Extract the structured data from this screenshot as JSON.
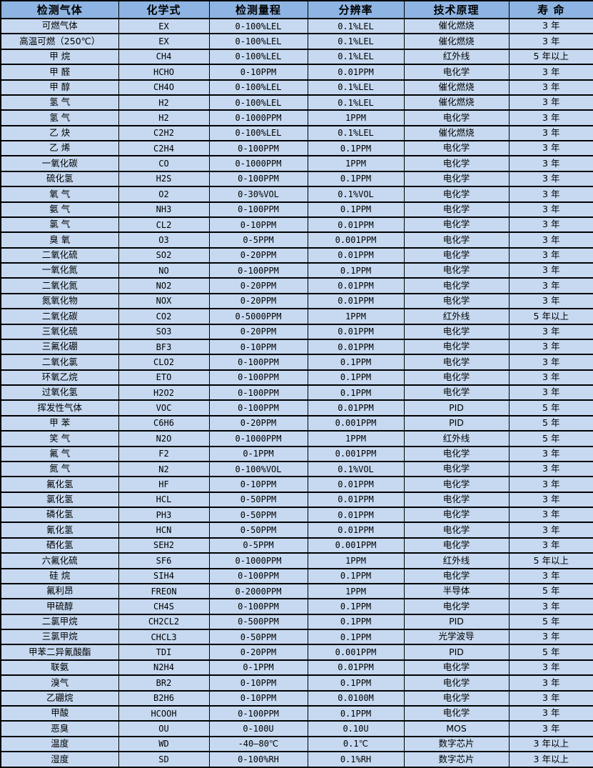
{
  "table": {
    "headers": [
      "检测气体",
      "化学式",
      "检测量程",
      "分辨率",
      "技术原理",
      "寿 命"
    ],
    "colors": {
      "header_bg": "#8db4e2",
      "body_bg": "#c6d9f1",
      "border": "#000000",
      "text": "#000000"
    },
    "rows": [
      {
        "gas": "可燃气体",
        "formula": "EX",
        "range": "0-100%LEL",
        "resolution": "0.1%LEL",
        "principle": "催化燃烧",
        "life": "3 年"
      },
      {
        "gas": "高温可燃（250℃）",
        "formula": "EX",
        "range": "0-100%LEL",
        "resolution": "0.1%LEL",
        "principle": "催化燃烧",
        "life": "3 年"
      },
      {
        "gas": "甲 烷",
        "formula": "CH4",
        "range": "0-100%LEL",
        "resolution": "0.1%LEL",
        "principle": "红外线",
        "life": "5 年以上"
      },
      {
        "gas": "甲 醛",
        "formula": "HCHO",
        "range": "0-10PPM",
        "resolution": "0.01PPM",
        "principle": "电化学",
        "life": "3 年"
      },
      {
        "gas": "甲 醇",
        "formula": "CH4O",
        "range": "0-100%LEL",
        "resolution": "0.1%LEL",
        "principle": "催化燃烧",
        "life": "3 年"
      },
      {
        "gas": "氢 气",
        "formula": "H2",
        "range": "0-100%LEL",
        "resolution": "0.1%LEL",
        "principle": "催化燃烧",
        "life": "3 年"
      },
      {
        "gas": "氢 气",
        "formula": "H2",
        "range": "0-1000PPM",
        "resolution": "1PPM",
        "principle": "电化学",
        "life": "3 年"
      },
      {
        "gas": "乙 炔",
        "formula": "C2H2",
        "range": "0-100%LEL",
        "resolution": "0.1%LEL",
        "principle": "催化燃烧",
        "life": "3 年"
      },
      {
        "gas": "乙 烯",
        "formula": "C2H4",
        "range": "0-100PPM",
        "resolution": "0.1PPM",
        "principle": "电化学",
        "life": "3 年"
      },
      {
        "gas": "一氧化碳",
        "formula": "CO",
        "range": "0-1000PPM",
        "resolution": "1PPM",
        "principle": "电化学",
        "life": "3 年"
      },
      {
        "gas": "硫化氢",
        "formula": "H2S",
        "range": "0-100PPM",
        "resolution": "0.1PPM",
        "principle": "电化学",
        "life": "3 年"
      },
      {
        "gas": "氧 气",
        "formula": "O2",
        "range": "0-30%VOL",
        "resolution": "0.1%VOL",
        "principle": "电化学",
        "life": "3 年"
      },
      {
        "gas": "氨 气",
        "formula": "NH3",
        "range": "0-100PPM",
        "resolution": "0.1PPM",
        "principle": "电化学",
        "life": "3 年"
      },
      {
        "gas": "氯 气",
        "formula": "CL2",
        "range": "0-10PPM",
        "resolution": "0.01PPM",
        "principle": "电化学",
        "life": "3 年"
      },
      {
        "gas": "臭 氧",
        "formula": "O3",
        "range": "0-5PPM",
        "resolution": "0.001PPM",
        "principle": "电化学",
        "life": "3 年"
      },
      {
        "gas": "二氧化硫",
        "formula": "SO2",
        "range": "0-20PPM",
        "resolution": "0.01PPM",
        "principle": "电化学",
        "life": "3 年"
      },
      {
        "gas": "一氧化氮",
        "formula": "NO",
        "range": "0-100PPM",
        "resolution": "0.1PPM",
        "principle": "电化学",
        "life": "3 年"
      },
      {
        "gas": "二氧化氮",
        "formula": "NO2",
        "range": "0-20PPM",
        "resolution": "0.01PPM",
        "principle": "电化学",
        "life": "3 年"
      },
      {
        "gas": "氮氧化物",
        "formula": "NOX",
        "range": "0-20PPM",
        "resolution": "0.01PPM",
        "principle": "电化学",
        "life": "3 年"
      },
      {
        "gas": "二氧化碳",
        "formula": "CO2",
        "range": "0-5000PPM",
        "resolution": "1PPM",
        "principle": "红外线",
        "life": "5 年以上"
      },
      {
        "gas": "三氧化硫",
        "formula": "SO3",
        "range": "0-20PPM",
        "resolution": "0.01PPM",
        "principle": "电化学",
        "life": "3 年"
      },
      {
        "gas": "三氟化硼",
        "formula": "BF3",
        "range": "0-10PPM",
        "resolution": "0.01PPM",
        "principle": "电化学",
        "life": "3 年"
      },
      {
        "gas": "二氧化氯",
        "formula": "CLO2",
        "range": "0-100PPM",
        "resolution": "0.1PPM",
        "principle": "电化学",
        "life": "3 年"
      },
      {
        "gas": "环氧乙烷",
        "formula": "ETO",
        "range": "0-100PPM",
        "resolution": "0.1PPM",
        "principle": "电化学",
        "life": "3 年"
      },
      {
        "gas": "过氧化氢",
        "formula": "H2O2",
        "range": "0-100PPM",
        "resolution": "0.1PPM",
        "principle": "电化学",
        "life": "3 年"
      },
      {
        "gas": "挥发性气体",
        "formula": "VOC",
        "range": "0-100PPM",
        "resolution": "0.01PPM",
        "principle": "PID",
        "life": "5 年"
      },
      {
        "gas": "甲 苯",
        "formula": "C6H6",
        "range": "0-20PPM",
        "resolution": "0.001PPM",
        "principle": "PID",
        "life": "5 年"
      },
      {
        "gas": "笑 气",
        "formula": "N2O",
        "range": "0-1000PPM",
        "resolution": "1PPM",
        "principle": "红外线",
        "life": "5 年"
      },
      {
        "gas": "氟 气",
        "formula": "F2",
        "range": "0-1PPM",
        "resolution": "0.001PPM",
        "principle": "电化学",
        "life": "3 年"
      },
      {
        "gas": "氮 气",
        "formula": "N2",
        "range": "0-100%VOL",
        "resolution": "0.1%VOL",
        "principle": "电化学",
        "life": "3 年"
      },
      {
        "gas": "氟化氢",
        "formula": "HF",
        "range": "0-10PPM",
        "resolution": "0.01PPM",
        "principle": "电化学",
        "life": "3 年"
      },
      {
        "gas": "氯化氢",
        "formula": "HCL",
        "range": "0-50PPM",
        "resolution": "0.01PPM",
        "principle": "电化学",
        "life": "3 年"
      },
      {
        "gas": "磷化氢",
        "formula": "PH3",
        "range": "0-50PPM",
        "resolution": "0.01PPM",
        "principle": "电化学",
        "life": "3 年"
      },
      {
        "gas": "氰化氢",
        "formula": "HCN",
        "range": "0-50PPM",
        "resolution": "0.01PPM",
        "principle": "电化学",
        "life": "3 年"
      },
      {
        "gas": "硒化氢",
        "formula": "SEH2",
        "range": "0-5PPM",
        "resolution": "0.001PPM",
        "principle": "电化学",
        "life": "3 年"
      },
      {
        "gas": "六氟化硫",
        "formula": "SF6",
        "range": "0-1000PPM",
        "resolution": "1PPM",
        "principle": "红外线",
        "life": "5 年以上"
      },
      {
        "gas": "硅 烷",
        "formula": "SIH4",
        "range": "0-100PPM",
        "resolution": "0.1PPM",
        "principle": "电化学",
        "life": "3 年"
      },
      {
        "gas": "氟利昂",
        "formula": "FREON",
        "range": "0-2000PPM",
        "resolution": "1PPM",
        "principle": "半导体",
        "life": "5 年"
      },
      {
        "gas": "甲硫醇",
        "formula": "CH4S",
        "range": "0-100PPM",
        "resolution": "0.1PPM",
        "principle": "电化学",
        "life": "3 年"
      },
      {
        "gas": "二氯甲烷",
        "formula": "CH2CL2",
        "range": "0-500PPM",
        "resolution": "0.1PPM",
        "principle": "PID",
        "life": "5 年"
      },
      {
        "gas": "三氯甲烷",
        "formula": "CHCL3",
        "range": "0-50PPM",
        "resolution": "0.1PPM",
        "principle": "光学波导",
        "life": "3 年"
      },
      {
        "gas": "甲苯二异氰酸酯",
        "formula": "TDI",
        "range": "0-20PPM",
        "resolution": "0.001PPM",
        "principle": "PID",
        "life": "5 年"
      },
      {
        "gas": "联氨",
        "formula": "N2H4",
        "range": "0-1PPM",
        "resolution": "0.01PPM",
        "principle": "电化学",
        "life": "3 年"
      },
      {
        "gas": "溴气",
        "formula": "BR2",
        "range": "0-10PPM",
        "resolution": "0.1PPM",
        "principle": "电化学",
        "life": "3 年"
      },
      {
        "gas": "乙硼烷",
        "formula": "B2H6",
        "range": "0-10PPM",
        "resolution": "0.0100M",
        "principle": "电化学",
        "life": "3 年"
      },
      {
        "gas": "甲酸",
        "formula": "HCOOH",
        "range": "0-100PPM",
        "resolution": "0.1PPM",
        "principle": "电化学",
        "life": "3 年"
      },
      {
        "gas": "恶臭",
        "formula": "OU",
        "range": "0-100U",
        "resolution": "0.10U",
        "principle": "MOS",
        "life": "3 年"
      },
      {
        "gas": "温度",
        "formula": "WD",
        "range": "-40—80℃",
        "resolution": "0.1℃",
        "principle": "数字芯片",
        "life": "3 年以上"
      },
      {
        "gas": "湿度",
        "formula": "SD",
        "range": "0-100%RH",
        "resolution": "0.1%RH",
        "principle": "数字芯片",
        "life": "3 年以上"
      }
    ]
  }
}
